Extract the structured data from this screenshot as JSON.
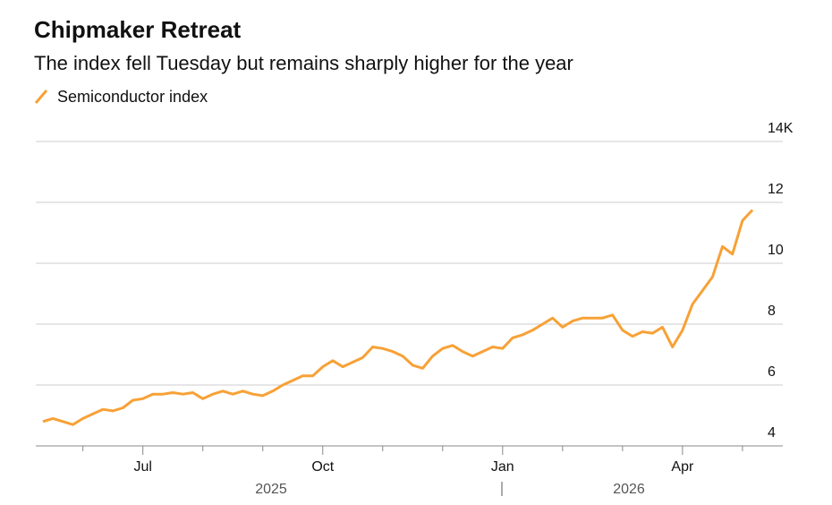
{
  "chart_data": {
    "type": "line",
    "title": "Chipmaker Retreat",
    "subtitle": "The index fell Tuesday but remains sharply higher for the year",
    "categories": [
      null,
      null,
      null,
      null,
      null,
      null,
      null,
      null,
      null,
      null,
      "Jul",
      null,
      null,
      null,
      null,
      null,
      null,
      null,
      null,
      null,
      null,
      null,
      null,
      null,
      null,
      null,
      null,
      null,
      "Oct",
      null,
      null,
      null,
      null,
      null,
      null,
      null,
      null,
      null,
      null,
      null,
      null,
      null,
      null,
      null,
      null,
      null,
      "Jan",
      null,
      null,
      null,
      null,
      null,
      null,
      null,
      null,
      null,
      null,
      null,
      null,
      null,
      null,
      null,
      null,
      null,
      "Apr",
      null,
      null,
      null,
      null,
      null,
      null,
      null
    ],
    "year_labels": [
      "2025",
      "2026"
    ],
    "series": [
      {
        "name": "Semiconductor index",
        "color": "#f7a136",
        "values": [
          4.8,
          4.9,
          4.8,
          4.7,
          4.9,
          5.05,
          5.2,
          5.15,
          5.25,
          5.5,
          5.55,
          5.7,
          5.7,
          5.75,
          5.7,
          5.75,
          5.55,
          5.7,
          5.8,
          5.7,
          5.8,
          5.7,
          5.65,
          5.8,
          6.0,
          6.15,
          6.3,
          6.3,
          6.6,
          6.8,
          6.6,
          6.75,
          6.9,
          7.25,
          7.2,
          7.1,
          6.95,
          6.65,
          6.55,
          6.95,
          7.2,
          7.3,
          7.1,
          6.95,
          7.1,
          7.25,
          7.2,
          7.55,
          7.65,
          7.8,
          8.0,
          8.2,
          7.9,
          8.1,
          8.2,
          8.2,
          8.2,
          8.3,
          7.8,
          7.6,
          7.75,
          7.7,
          7.9,
          7.25,
          7.8,
          8.65,
          9.1,
          9.55,
          10.55,
          10.3,
          11.4,
          11.75
        ]
      }
    ],
    "ylim": [
      4,
      14
    ],
    "yticks": [
      4,
      6,
      8,
      10,
      12,
      {
        "value": 14,
        "label": "14K"
      }
    ],
    "grid": true
  }
}
